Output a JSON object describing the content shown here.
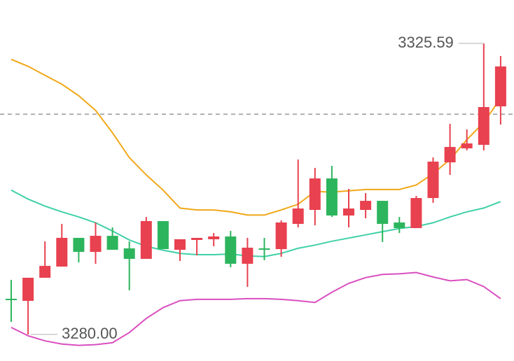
{
  "chart_data": {
    "type": "candlestick",
    "ylim": [
      3275.84,
      3332.39
    ],
    "up_color": "#e8414f",
    "down_color": "#2db55d",
    "open": [
      3285.59,
      3285.26,
      3288.88,
      3290.63,
      3295.13,
      3292.93,
      3295.45,
      3293.48,
      3291.84,
      3297.76,
      3293.26,
      3294.8,
      3294.91,
      3295.35,
      3291.07,
      3293.48,
      3293.37,
      3297.32,
      3299.51,
      3304.44,
      3298.63,
      3299.51,
      3300.93,
      3297.54,
      3296.66,
      3301.37,
      3306.96,
      3309.15,
      3309.7,
      3315.73
    ],
    "high": [
      3288.55,
      3288.88,
      3294.58,
      3297.32,
      3295.13,
      3297.54,
      3296.77,
      3294.58,
      3298.41,
      3297.76,
      3294.91,
      3295.13,
      3295.89,
      3296.22,
      3295.13,
      3295.13,
      3297.87,
      3307.4,
      3306.09,
      3306.41,
      3302.8,
      3302.14,
      3300.93,
      3298.41,
      3301.7,
      3307.73,
      3312.99,
      3312.11,
      3325.59,
      3323.62
    ],
    "low": [
      3281.97,
      3280.0,
      3288.88,
      3290.63,
      3291.29,
      3291.07,
      3293.26,
      3286.91,
      3291.84,
      3293.37,
      3291.51,
      3292.39,
      3293.81,
      3290.52,
      3287.45,
      3291.62,
      3292.17,
      3296.77,
      3297.1,
      3298.41,
      3296.77,
      3298.19,
      3294.47,
      3295.89,
      3296.66,
      3300.61,
      3304.99,
      3308.83,
      3308.83,
      3312.88
    ],
    "close": [
      3285.48,
      3288.88,
      3290.74,
      3295.13,
      3292.93,
      3295.45,
      3293.26,
      3291.84,
      3297.76,
      3293.37,
      3294.91,
      3295.13,
      3295.35,
      3291.07,
      3293.59,
      3293.37,
      3297.54,
      3299.73,
      3304.44,
      3298.63,
      3299.73,
      3300.93,
      3297.32,
      3296.66,
      3301.37,
      3307.07,
      3309.37,
      3309.92,
      3315.62,
      3321.98
    ],
    "series": [
      {
        "color": "#f0a818",
        "values": [
          3323.1,
          3322.0,
          3320.6,
          3319.2,
          3317.4,
          3315.1,
          3311.6,
          3307.7,
          3305.0,
          3302.6,
          3299.8,
          3299.5,
          3299.5,
          3299.2,
          3298.7,
          3298.7,
          3299.5,
          3300.4,
          3302.4,
          3302.3,
          3302.5,
          3302.7,
          3302.7,
          3302.7,
          3303.4,
          3305.2,
          3307.4,
          3310.5,
          3313.2,
          3317.0
        ]
      },
      {
        "color": "#3fd0a8",
        "values": [
          3302.6,
          3301.2,
          3300.1,
          3299.2,
          3298.4,
          3297.5,
          3296.2,
          3294.8,
          3293.8,
          3293.2,
          3292.7,
          3292.5,
          3292.5,
          3292.6,
          3292.3,
          3292.2,
          3292.7,
          3293.5,
          3294.0,
          3294.6,
          3295.1,
          3295.6,
          3296.1,
          3296.6,
          3296.9,
          3297.5,
          3298.4,
          3299.2,
          3299.8,
          3300.8
        ]
      },
      {
        "color": "#d94fc0",
        "values": [
          3281.1,
          3279.8,
          3279.0,
          3278.5,
          3278.3,
          3278.4,
          3278.7,
          3280.3,
          3282.5,
          3284.2,
          3285.3,
          3285.5,
          3285.5,
          3285.5,
          3285.6,
          3285.6,
          3285.5,
          3285.3,
          3285.0,
          3286.6,
          3288.0,
          3288.9,
          3289.4,
          3289.5,
          3289.7,
          3289.0,
          3288.4,
          3288.6,
          3287.5,
          3285.6
        ]
      }
    ],
    "price_line": 3314.5,
    "annotations": [
      {
        "value": 3325.59,
        "label": "3325.59"
      },
      {
        "value": 3280,
        "label": "3280.00"
      }
    ]
  }
}
